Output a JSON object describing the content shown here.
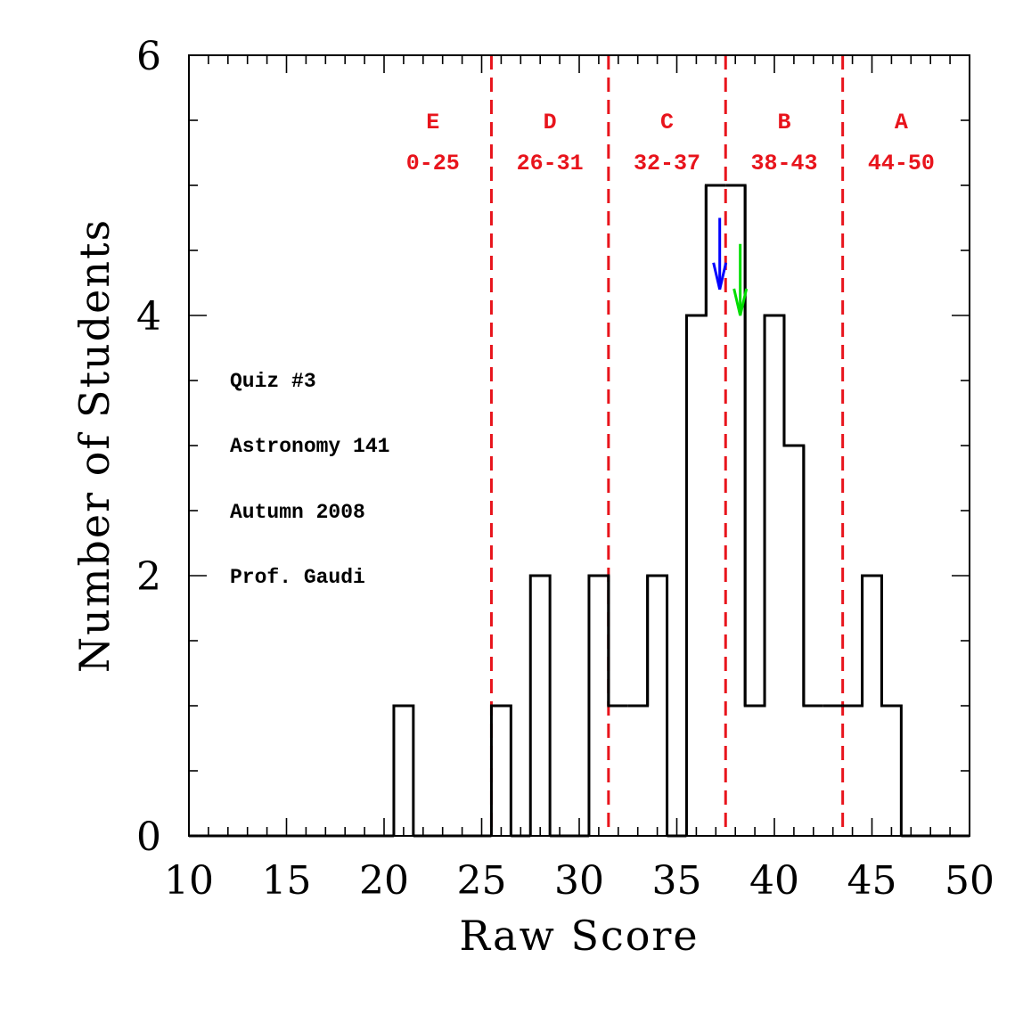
{
  "chart_data": {
    "type": "histogram",
    "title": "",
    "xlabel": "Raw Score",
    "ylabel": "Number of Students",
    "xlim": [
      10,
      50
    ],
    "ylim": [
      0,
      6
    ],
    "x_ticks": [
      10,
      15,
      20,
      25,
      30,
      35,
      40,
      45,
      50
    ],
    "y_ticks": [
      0,
      2,
      4,
      6
    ],
    "bin_width": 1,
    "bins": [
      {
        "score": 21,
        "count": 1
      },
      {
        "score": 26,
        "count": 1
      },
      {
        "score": 28,
        "count": 2
      },
      {
        "score": 31,
        "count": 2
      },
      {
        "score": 32,
        "count": 1
      },
      {
        "score": 33,
        "count": 1
      },
      {
        "score": 34,
        "count": 2
      },
      {
        "score": 36,
        "count": 4
      },
      {
        "score": 37,
        "count": 5
      },
      {
        "score": 38,
        "count": 5
      },
      {
        "score": 39,
        "count": 1
      },
      {
        "score": 40,
        "count": 4
      },
      {
        "score": 41,
        "count": 3
      },
      {
        "score": 42,
        "count": 1
      },
      {
        "score": 43,
        "count": 1
      },
      {
        "score": 44,
        "count": 1
      },
      {
        "score": 45,
        "count": 2
      },
      {
        "score": 46,
        "count": 1
      }
    ],
    "grade_cutoffs": [
      25.5,
      31.5,
      37.5,
      43.5
    ],
    "grades": [
      {
        "letter": "E",
        "range": "0-25",
        "center": 22.5
      },
      {
        "letter": "D",
        "range": "26-31",
        "center": 28.5
      },
      {
        "letter": "C",
        "range": "32-37",
        "center": 34.5
      },
      {
        "letter": "B",
        "range": "38-43",
        "center": 40.5
      },
      {
        "letter": "A",
        "range": "44-50",
        "center": 46.5
      }
    ],
    "markers": [
      {
        "name": "blue-arrow",
        "x": 37.2,
        "y_top": 4.75,
        "y_bottom": 4.2,
        "color": "#0000ff"
      },
      {
        "name": "green-arrow",
        "x": 38.25,
        "y_top": 4.55,
        "y_bottom": 4.0,
        "color": "#00dd00"
      }
    ],
    "annotations": [
      "Quiz #3",
      "Astronomy 141",
      "Autumn 2008",
      "Prof. Gaudi"
    ],
    "colors": {
      "histogram": "#000000",
      "cutoff": "#e8141c",
      "grade_text": "#e8141c"
    }
  }
}
